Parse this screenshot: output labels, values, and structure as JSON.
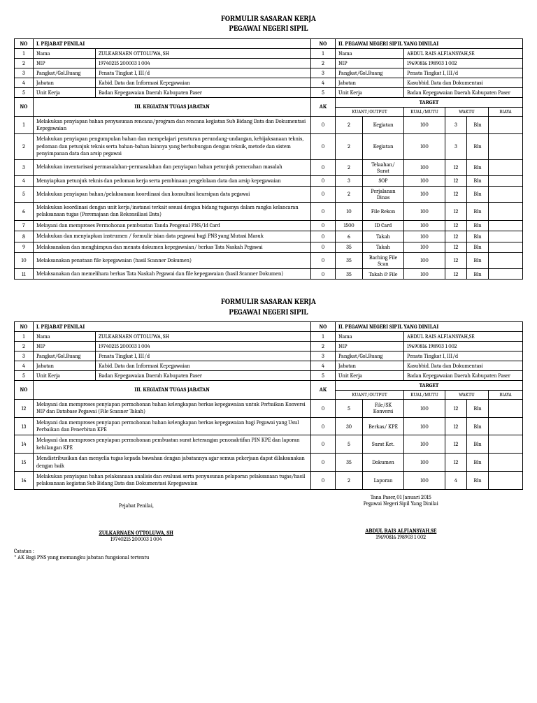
{
  "doc_title_l1": "FORMULIR SASARAN KERJA",
  "doc_title_l2": "PEGAWAI NEGERI SIPIL",
  "hdr_no": "NO",
  "hdr_penilai": "I. PEJABAT PENILAI",
  "hdr_dinilai": "II. PEGAWAI NEGERI SIPIL YANG DINILAI",
  "hdr_kegiatan": "III. KEGIATAN TUGAS JABATAN",
  "hdr_ak": "AK",
  "hdr_target": "TARGET",
  "hdr_kuant": "KUANT/OUTPUT",
  "hdr_kual": "KUAL/MUTU",
  "hdr_waktu": "WAKTU",
  "hdr_biaya": "BIAYA",
  "penilai": {
    "r1": {
      "n": "1",
      "l": "Nama",
      "v": "ZULKARNAEN OTTOLUWA, SH"
    },
    "r2": {
      "n": "2",
      "l": "NIP",
      "v": "19740215 200003 1 004"
    },
    "r3": {
      "n": "3",
      "l": "Pangkat/Gol.Ruang",
      "v": "Penata Tingkat I, III/d"
    },
    "r4": {
      "n": "4",
      "l": "Jabatan",
      "v": "Kabid. Data dan Informasi Kepegawaian"
    },
    "r5": {
      "n": "5",
      "l": "Unit Kerja",
      "v": "Badan Kepegawaian Daerah Kabupaten Paser"
    }
  },
  "dinilai": {
    "r1": {
      "n": "1",
      "l": "Nama",
      "v": "ABDUL RAIS ALFIANSYAH,SE"
    },
    "r2": {
      "n": "2",
      "l": "NIP",
      "v": "19690816 198903 1 002"
    },
    "r3": {
      "n": "3",
      "l": "Pangkat/Gol.Ruang",
      "v": "Penata Tingkat I, III/d"
    },
    "r4": {
      "n": "4",
      "l": "Jabatan",
      "v": "Kasubbid. Data dan Dokumentasi"
    },
    "r5": {
      "n": "5",
      "l": "Unit Kerja",
      "v": "Badan Kepegawaian Daerah Kabupaten Paser"
    }
  },
  "tasks1": {
    "t1": {
      "n": "1",
      "d": "Melakukan penyiapan bahan penyusunan rencana/program dan rencana kegiatan Sub Bidang Data dan Dokumentasi Kepegawaian",
      "ak": "0",
      "q": "2",
      "u": "Kegiatan",
      "k": "100",
      "w": "3",
      "wu": "Bln",
      "b": ""
    },
    "t2": {
      "n": "2",
      "d": "Melakukan penyiapan pengumpulan bahan dan mempelajari peraturan perundang-undangan, kebijaksanaan teknis, pedoman dan petunjuk teknis serta bahan-bahan lainnya yang berhubungan dengan teknik, metode dan sistem penyimpanan data dan arsip pegawai",
      "ak": "0",
      "q": "2",
      "u": "Kegiatan",
      "k": "100",
      "w": "3",
      "wu": "Bln",
      "b": ""
    },
    "t3": {
      "n": "3",
      "d": "Melakukan inventarisasi permasalahan-permasalahan dan penyiapan bahan petunjuk pemecahan masalah",
      "ak": "0",
      "q": "2",
      "u": "Telaahan/ Surat",
      "k": "100",
      "w": "12",
      "wu": "Bln",
      "b": ""
    },
    "t4": {
      "n": "4",
      "d": "Menyiapkan petunjuk teknis dan pedoman kerja serta pembinaan pengelolaan data dan arsip kepegawaian",
      "ak": "0",
      "q": "3",
      "u": "SOP",
      "k": "100",
      "w": "12",
      "wu": "Bln",
      "b": ""
    },
    "t5": {
      "n": "5",
      "d": "Melakukan penyiapan bahan/pelaksanaan koordinasi dan konsultasi kearsipan data pegawai",
      "ak": "0",
      "q": "2",
      "u": "Perjalanan Dinas",
      "k": "100",
      "w": "12",
      "wu": "Bln",
      "b": ""
    },
    "t6": {
      "n": "6",
      "d": "Melakukan koordinasi dengan unit kerja/instansi terkait sesuai dengan bidang tugasnya dalam rangka kelancaran pelaksanaan tugas (Peremajaan dan Rekonsiliasi Data)",
      "ak": "0",
      "q": "10",
      "u": "File Rekon",
      "k": "100",
      "w": "12",
      "wu": "Bln",
      "b": ""
    },
    "t7": {
      "n": "7",
      "d": "Melayani dan memproses Permohonan pembuatan Tanda Pengenal PNS/Id Card",
      "ak": "0",
      "q": "1500",
      "u": "ID Card",
      "k": "100",
      "w": "12",
      "wu": "Bln",
      "b": ""
    },
    "t8": {
      "n": "8",
      "d": "Melakukan dan menyiapkan instrumen / formulir isian data pegawai bagi PNS yang Mutasi Masuk",
      "ak": "0",
      "q": "6",
      "u": "Takah",
      "k": "100",
      "w": "12",
      "wu": "Bln",
      "b": ""
    },
    "t9": {
      "n": "9",
      "d": "Melaksanakan dan menghimpun dan menata dokumen kepegawaian/ berkas Tata Naskah Pegawai",
      "ak": "0",
      "q": "35",
      "u": "Takah",
      "k": "100",
      "w": "12",
      "wu": "Bln",
      "b": ""
    },
    "t10": {
      "n": "10",
      "d": "Melaksanakan penataan file kepegawaian (hasil Scanner Dokumen)",
      "ak": "0",
      "q": "35",
      "u": "Baching File Scan",
      "k": "100",
      "w": "12",
      "wu": "Bln",
      "b": ""
    },
    "t11": {
      "n": "11",
      "d": "Melaksanakan dan memelihara berkas Tata Naskah Pegawai dan file kepegawaian (hasil Scanner Dokumen)",
      "ak": "0",
      "q": "35",
      "u": "Takah & File",
      "k": "100",
      "w": "12",
      "wu": "Bln",
      "b": ""
    }
  },
  "tasks2": {
    "t12": {
      "n": "12",
      "d": "Melayani dan memproses penyiapan permohonan bahan kelengkapan berkas kepegawaian untuk Perbaikan Konversi NIP dan Database Pegawai (File Scanner Takah)",
      "ak": "0",
      "q": "5",
      "u": "File/SK Konversi",
      "k": "100",
      "w": "12",
      "wu": "Bln",
      "b": ""
    },
    "t13": {
      "n": "13",
      "d": "Melayani dan memproses penyiapan permohonan bahan kelengkapan berkas kepegawaian bagi Pegawai yang Usul Perbaikan dan Penerbitan KPE",
      "ak": "0",
      "q": "30",
      "u": "Berkas/ KPE",
      "k": "100",
      "w": "12",
      "wu": "Bln",
      "b": ""
    },
    "t14": {
      "n": "14",
      "d": "Melayani dan memproses penyiapan permohonan pembuatan surat keterangan penonaktifan PIN KPE dan laporan kehilangan KPE",
      "ak": "0",
      "q": "5",
      "u": "Surat Ket.",
      "k": "100",
      "w": "12",
      "wu": "Bln",
      "b": ""
    },
    "t15": {
      "n": "15",
      "d": "Mendistribusikan dan menyelia tugas kepada bawahan dengan jabatannya agar semua pekerjaan dapat dilaksanakan dengan baik",
      "ak": "0",
      "q": "35",
      "u": "Dokumen",
      "k": "100",
      "w": "12",
      "wu": "Bln",
      "b": ""
    },
    "t16": {
      "n": "16",
      "d": "Melakukan penyiapan bahan pelaksanaan analisis dan evaluasi serta penyusunan pelaporan pelaksanaan tugas/hasil pelaksanaan kegiatan Sub Bidang Data dan Dokumentasi Kepegawaian",
      "ak": "0",
      "q": "2",
      "u": "Laporan",
      "k": "100",
      "w": "4",
      "wu": "Bln",
      "b": ""
    }
  },
  "sig": {
    "date": "Tana Paser, 01 Januari 2015",
    "left_title": "Pejabat Penilai,",
    "right_title": "Pegawai Negeri Sipil Yang Dinilai",
    "left_name": "ZULKARNAEN OTTOLUWA, SH",
    "left_nip": "19740215 200003 1 004",
    "right_name": "ABDUL RAIS ALFIANSYAH,SE",
    "right_nip": "19690816 198903 1 002"
  },
  "note_l1": "Catatan :",
  "note_l2": "* AK Bagi PNS yang memangku jabatan fungsional tertentu"
}
